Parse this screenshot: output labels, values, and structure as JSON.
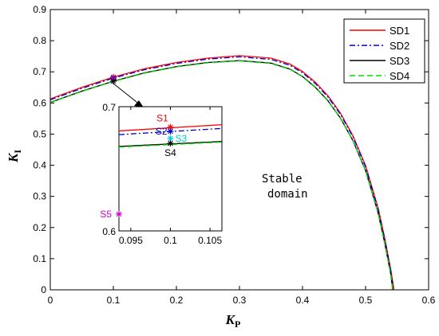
{
  "chart_data": {
    "type": "line",
    "xlabel": "K",
    "xlabel_sub": "P",
    "ylabel": "K",
    "ylabel_sub": "I",
    "xlim": [
      0,
      0.6
    ],
    "ylim": [
      0,
      0.9
    ],
    "xticks": [
      "0",
      "0.1",
      "0.2",
      "0.3",
      "0.4",
      "0.5",
      "0.6"
    ],
    "yticks": [
      "0",
      "0.1",
      "0.2",
      "0.3",
      "0.4",
      "0.5",
      "0.6",
      "0.7",
      "0.8",
      "0.9"
    ],
    "grid": false,
    "legend_position": "top-right",
    "series": [
      {
        "name": "SD1",
        "color": "#ff0000",
        "dash": "solid",
        "x": [
          0,
          0.05,
          0.1,
          0.15,
          0.2,
          0.25,
          0.3,
          0.35,
          0.38,
          0.4,
          0.42,
          0.44,
          0.46,
          0.48,
          0.5,
          0.52,
          0.53,
          0.54,
          0.545
        ],
        "y": [
          0.613,
          0.65,
          0.683,
          0.71,
          0.73,
          0.744,
          0.752,
          0.744,
          0.725,
          0.701,
          0.667,
          0.624,
          0.568,
          0.495,
          0.399,
          0.262,
          0.17,
          0.065,
          0.0
        ]
      },
      {
        "name": "SD2",
        "color": "#0000cc",
        "dash": "dashdot",
        "x": [
          0,
          0.05,
          0.1,
          0.15,
          0.2,
          0.25,
          0.3,
          0.35,
          0.38,
          0.4,
          0.42,
          0.44,
          0.46,
          0.48,
          0.5,
          0.52,
          0.53,
          0.54,
          0.544
        ],
        "y": [
          0.61,
          0.647,
          0.68,
          0.707,
          0.727,
          0.741,
          0.748,
          0.74,
          0.721,
          0.697,
          0.663,
          0.62,
          0.564,
          0.491,
          0.395,
          0.258,
          0.166,
          0.061,
          0.0
        ]
      },
      {
        "name": "SD3",
        "color": "#000000",
        "dash": "solid",
        "x": [
          0,
          0.05,
          0.1,
          0.15,
          0.2,
          0.25,
          0.3,
          0.35,
          0.38,
          0.4,
          0.42,
          0.44,
          0.46,
          0.48,
          0.5,
          0.52,
          0.53,
          0.54,
          0.543
        ],
        "y": [
          0.602,
          0.638,
          0.67,
          0.697,
          0.717,
          0.73,
          0.736,
          0.728,
          0.709,
          0.685,
          0.651,
          0.608,
          0.552,
          0.479,
          0.383,
          0.246,
          0.154,
          0.05,
          0.0
        ]
      },
      {
        "name": "SD4",
        "color": "#00dd00",
        "dash": "dashed",
        "x": [
          0,
          0.05,
          0.1,
          0.15,
          0.2,
          0.25,
          0.3,
          0.35,
          0.38,
          0.4,
          0.42,
          0.44,
          0.46,
          0.48,
          0.5,
          0.52,
          0.53,
          0.54,
          0.543
        ],
        "y": [
          0.601,
          0.637,
          0.669,
          0.696,
          0.716,
          0.729,
          0.735,
          0.727,
          0.708,
          0.684,
          0.65,
          0.607,
          0.551,
          0.478,
          0.382,
          0.245,
          0.153,
          0.049,
          0.0
        ]
      }
    ],
    "main_markers": [
      {
        "x": 0.1,
        "y": 0.683,
        "color": "#ff0000"
      },
      {
        "x": 0.1,
        "y": 0.68,
        "color": "#0000cc"
      },
      {
        "x": 0.1,
        "y": 0.676,
        "color": "#cc00cc"
      },
      {
        "x": 0.1,
        "y": 0.67,
        "color": "#000000"
      }
    ],
    "annotation": [
      "Stable",
      "domain"
    ],
    "inset": {
      "xlim": [
        0.0935,
        0.1065
      ],
      "ylim": [
        0.6,
        0.7
      ],
      "xticks": [
        "0.095",
        "0.1",
        "0.105"
      ],
      "yticks": [
        "0.6",
        "0.7"
      ],
      "lines": [
        {
          "color": "#ff0000",
          "dash": "solid",
          "y0": 0.6805,
          "y1": 0.6855
        },
        {
          "color": "#0000cc",
          "dash": "dashdot",
          "y0": 0.6775,
          "y1": 0.6825
        },
        {
          "color": "#000000",
          "dash": "solid",
          "y0": 0.668,
          "y1": 0.672
        },
        {
          "color": "#00dd00",
          "dash": "dashed",
          "y0": 0.6675,
          "y1": 0.6715
        }
      ],
      "points": [
        {
          "label": "S1",
          "x": 0.1,
          "y": 0.6835,
          "color": "#ff0000"
        },
        {
          "label": "S2",
          "x": 0.1,
          "y": 0.6802,
          "color": "#0000cc"
        },
        {
          "label": "S3",
          "x": 0.1,
          "y": 0.6745,
          "color": "#00cccc"
        },
        {
          "label": "S4",
          "x": 0.1,
          "y": 0.6705,
          "color": "#000000"
        },
        {
          "label": "S5",
          "x": 0.0935,
          "y": 0.6135,
          "color": "#cc00cc"
        }
      ]
    }
  }
}
